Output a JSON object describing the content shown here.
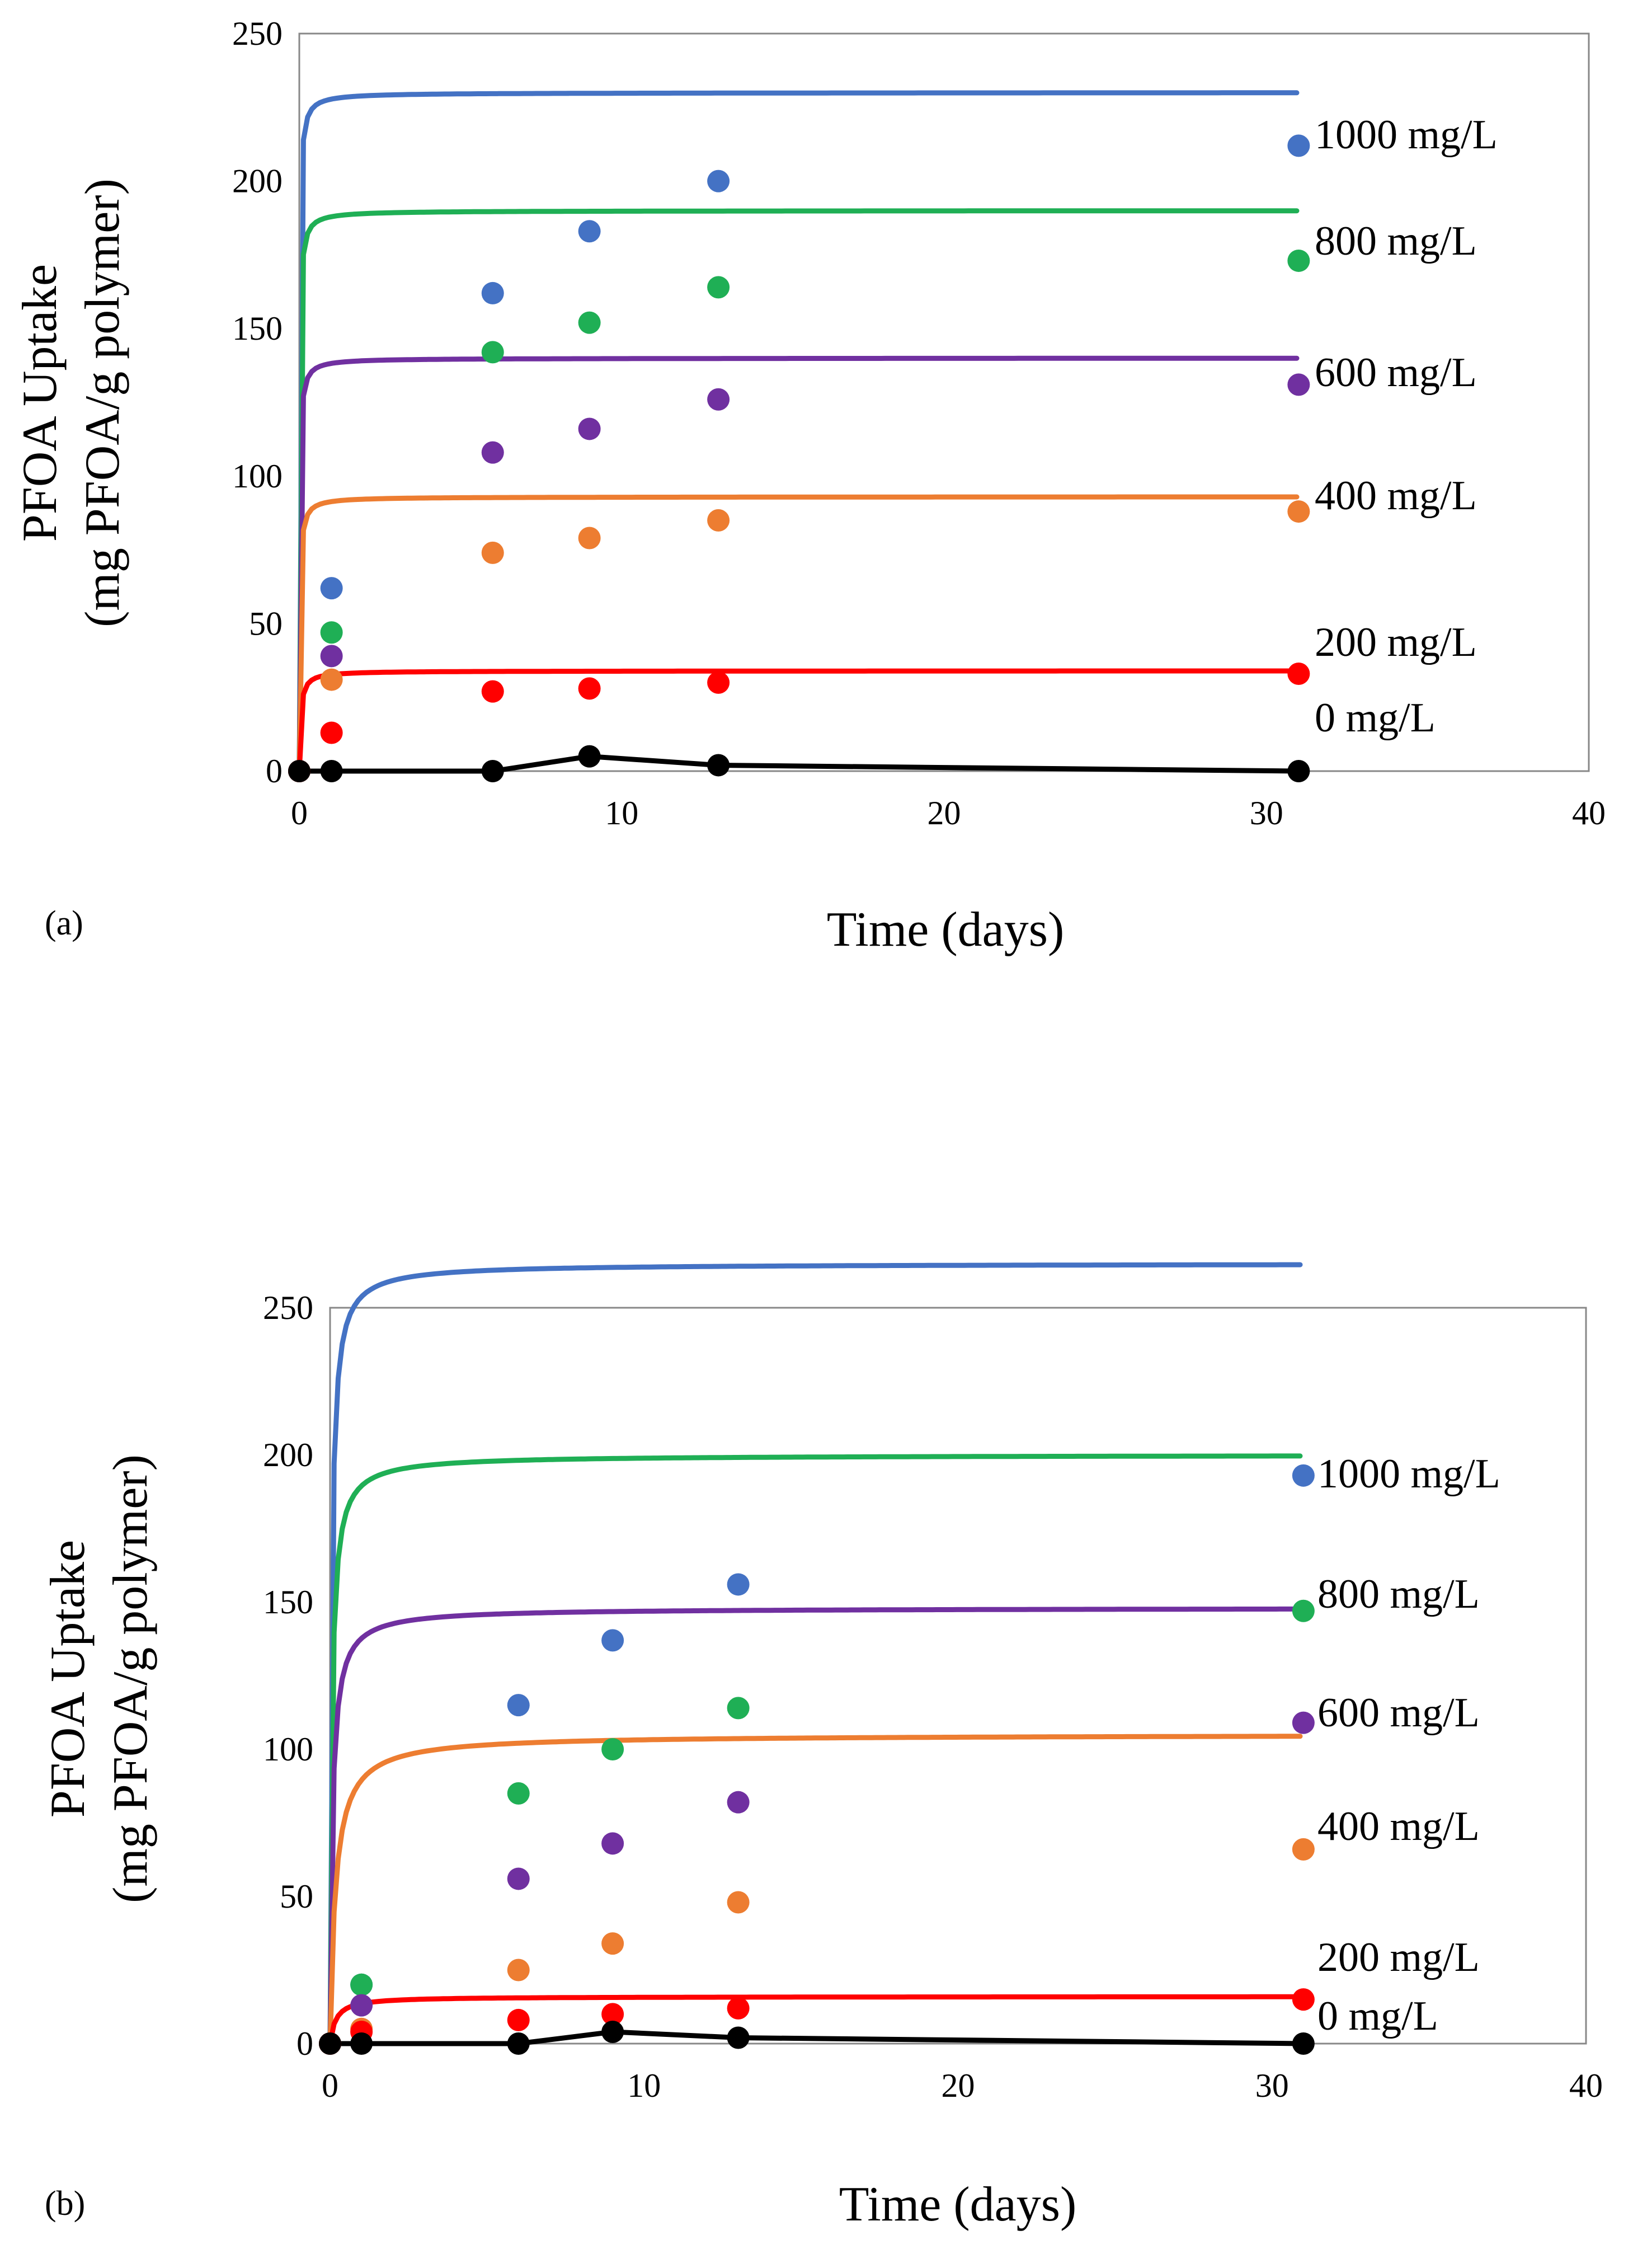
{
  "figure": {
    "colors": {
      "1000": "#4472C4",
      "800": "#1FAF55",
      "600": "#7030A0",
      "400": "#ED7D31",
      "200": "#FF0000",
      "0": "#000000"
    }
  },
  "chart_data": [
    {
      "type": "line",
      "panel_label": "(a)",
      "xlabel": "Time (days)",
      "ylabel_line1": "PFOA Uptake",
      "ylabel_line2": "(mg PFOA/g polymer)",
      "xlim": [
        0,
        40
      ],
      "ylim": [
        0,
        250
      ],
      "x_ticks": [
        0,
        10,
        20,
        30,
        40
      ],
      "y_ticks": [
        0,
        50,
        100,
        150,
        200,
        250
      ],
      "x_tick_labels": [
        "0",
        "10",
        "20",
        "30",
        "40"
      ],
      "y_tick_labels": [
        "0",
        "50",
        "100",
        "150",
        "200",
        "250"
      ],
      "series": [
        {
          "name": "1000 mg/L",
          "label": "1000 mg/L",
          "color": "#4472C4",
          "x": [
            0,
            1,
            6,
            9,
            13,
            31
          ],
          "y": [
            0,
            62,
            162,
            183,
            200,
            212
          ],
          "fit": {
            "qe": 230,
            "k": 0.45
          }
        },
        {
          "name": "800 mg/L",
          "label": "800 mg/L",
          "color": "#1FAF55",
          "x": [
            0,
            1,
            6,
            9,
            13,
            31
          ],
          "y": [
            0,
            47,
            142,
            152,
            164,
            173
          ],
          "fit": {
            "qe": 190,
            "k": 0.48
          }
        },
        {
          "name": "600 mg/L",
          "label": "600 mg/L",
          "color": "#7030A0",
          "x": [
            0,
            1,
            6,
            9,
            13,
            31
          ],
          "y": [
            0,
            39,
            108,
            116,
            126,
            131
          ],
          "fit": {
            "qe": 140,
            "k": 0.55
          }
        },
        {
          "name": "400 mg/L",
          "label": "400 mg/L",
          "color": "#ED7D31",
          "x": [
            0,
            1,
            6,
            9,
            13,
            31
          ],
          "y": [
            0,
            31,
            74,
            79,
            85,
            88
          ],
          "fit": {
            "qe": 93,
            "k": 0.6
          }
        },
        {
          "name": "200 mg/L",
          "label": "200 mg/L",
          "color": "#FF0000",
          "x": [
            0,
            1,
            6,
            9,
            13,
            31
          ],
          "y": [
            0,
            13,
            27,
            28,
            30,
            33
          ],
          "fit": {
            "qe": 34,
            "k": 0.75
          }
        },
        {
          "name": "0 mg/L",
          "label": "0 mg/L",
          "color": "#000000",
          "x": [
            0,
            1,
            6,
            9,
            13,
            31
          ],
          "y": [
            0,
            0,
            0,
            5,
            2,
            0
          ]
        }
      ]
    },
    {
      "type": "line",
      "panel_label": "(b)",
      "xlabel": "Time (days)",
      "ylabel_line1": "PFOA Uptake",
      "ylabel_line2": "(mg PFOA/g polymer)",
      "xlim": [
        0,
        40
      ],
      "ylim": [
        0,
        250
      ],
      "x_ticks": [
        0,
        10,
        20,
        30,
        40
      ],
      "y_ticks": [
        0,
        50,
        100,
        150,
        200,
        250
      ],
      "x_tick_labels": [
        "0",
        "10",
        "20",
        "30",
        "40"
      ],
      "y_tick_labels": [
        "0",
        "50",
        "100",
        "150",
        "200",
        "250"
      ],
      "series": [
        {
          "name": "1000 mg/L",
          "label": "1000 mg/L",
          "color": "#4472C4",
          "x": [
            0,
            1,
            6,
            9,
            13,
            31
          ],
          "y": [
            0,
            20,
            115,
            137,
            156,
            193
          ],
          "fit": {
            "qe": 265,
            "k": 0.085
          }
        },
        {
          "name": "800 mg/L",
          "label": "800 mg/L",
          "color": "#1FAF55",
          "x": [
            0,
            1,
            6,
            9,
            13,
            31
          ],
          "y": [
            0,
            20,
            85,
            100,
            114,
            147
          ],
          "fit": {
            "qe": 200,
            "k": 0.09
          }
        },
        {
          "name": "600 mg/L",
          "label": "600 mg/L",
          "color": "#7030A0",
          "x": [
            0,
            1,
            6,
            9,
            13,
            31
          ],
          "y": [
            0,
            13,
            56,
            68,
            82,
            109
          ],
          "fit": {
            "qe": 148,
            "k": 0.09
          }
        },
        {
          "name": "400 mg/L",
          "label": "400 mg/L",
          "color": "#ED7D31",
          "x": [
            0,
            1,
            6,
            9,
            13,
            31
          ],
          "y": [
            0,
            5,
            25,
            34,
            48,
            66
          ],
          "fit": {
            "qe": 105,
            "k": 0.055
          }
        },
        {
          "name": "200 mg/L",
          "label": "200 mg/L",
          "color": "#FF0000",
          "x": [
            0,
            1,
            6,
            9,
            13,
            31
          ],
          "y": [
            0,
            4,
            8,
            10,
            12,
            15
          ],
          "fit": {
            "qe": 16,
            "k": 0.35
          }
        },
        {
          "name": "0 mg/L",
          "label": "0 mg/L",
          "color": "#000000",
          "x": [
            0,
            1,
            6,
            9,
            13,
            31
          ],
          "y": [
            0,
            0,
            0,
            4,
            2,
            0
          ]
        }
      ]
    }
  ]
}
